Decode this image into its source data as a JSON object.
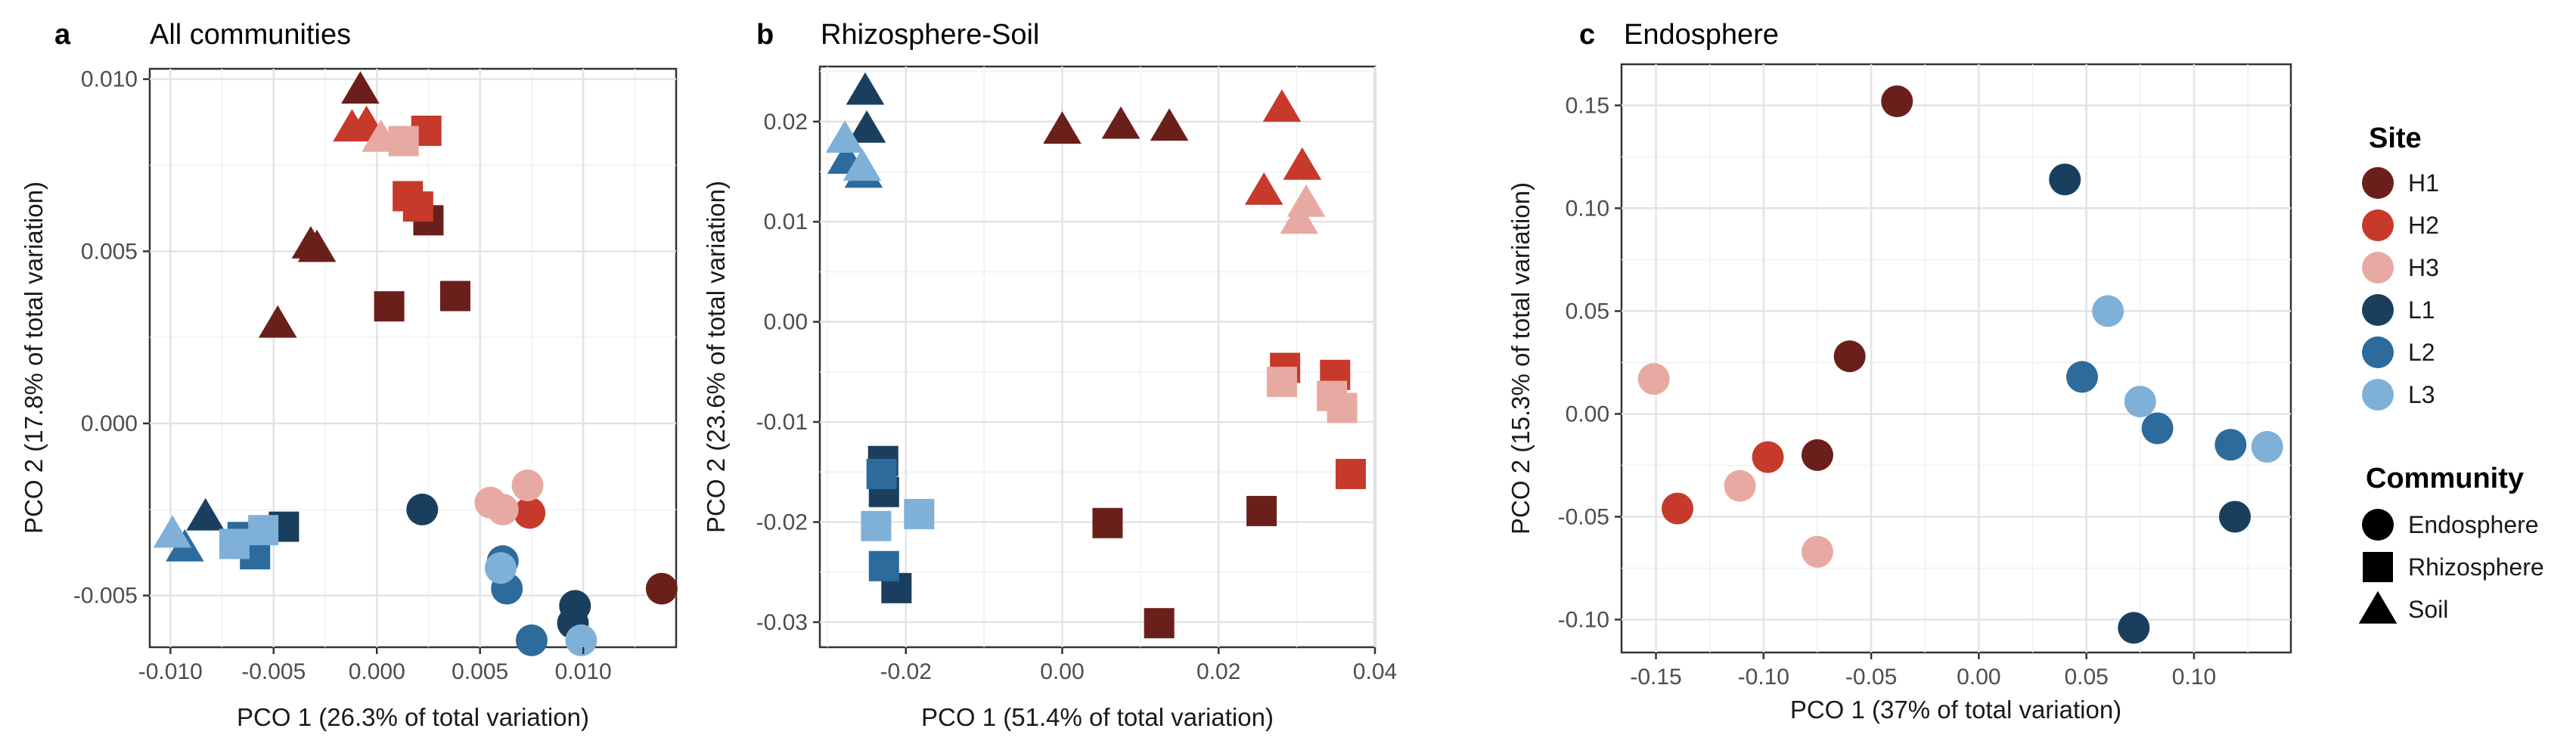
{
  "legend": {
    "site_title": "Site",
    "sites": [
      {
        "label": "H1",
        "color": "#6b1f1a"
      },
      {
        "label": "H2",
        "color": "#c6392b"
      },
      {
        "label": "H3",
        "color": "#e7aaa2"
      },
      {
        "label": "L1",
        "color": "#1a3f5e"
      },
      {
        "label": "L2",
        "color": "#2c6b9c"
      },
      {
        "label": "L3",
        "color": "#7fb0d8"
      }
    ],
    "community_title": "Community",
    "communities": [
      {
        "label": "Endosphere",
        "shape": "circle"
      },
      {
        "label": "Rhizosphere",
        "shape": "square"
      },
      {
        "label": "Soil",
        "shape": "triangle"
      }
    ]
  },
  "chart_data": [
    {
      "type": "scatter",
      "panel": "a",
      "title": "All communities",
      "xlabel": "PCO 1 (26.3% of total variation)",
      "ylabel": "PCO 2 (17.8% of total variation)",
      "xlim": [
        -0.011,
        0.0145
      ],
      "ylim": [
        -0.0065,
        0.0103
      ],
      "xticks": [
        -0.01,
        -0.005,
        0.0,
        0.005,
        0.01
      ],
      "xtick_labels": [
        "-0.010",
        "-0.005",
        "0.000",
        "0.005",
        "0.010"
      ],
      "yticks": [
        -0.005,
        0.0,
        0.005,
        0.01
      ],
      "ytick_labels": [
        "-0.005",
        "0.000",
        "0.005",
        "0.010"
      ],
      "grid": true,
      "points": [
        {
          "x": -0.0008,
          "y": 0.0097,
          "site": "H1",
          "community": "Soil"
        },
        {
          "x": -0.0032,
          "y": 0.0052,
          "site": "H1",
          "community": "Soil"
        },
        {
          "x": -0.0029,
          "y": 0.0051,
          "site": "H1",
          "community": "Soil"
        },
        {
          "x": -0.0048,
          "y": 0.0029,
          "site": "H1",
          "community": "Soil"
        },
        {
          "x": 0.0025,
          "y": 0.0059,
          "site": "H1",
          "community": "Rhizosphere"
        },
        {
          "x": 0.0006,
          "y": 0.0034,
          "site": "H1",
          "community": "Rhizosphere"
        },
        {
          "x": 0.0038,
          "y": 0.0037,
          "site": "H1",
          "community": "Rhizosphere"
        },
        {
          "x": 0.0138,
          "y": -0.0048,
          "site": "H1",
          "community": "Endosphere"
        },
        {
          "x": -0.0005,
          "y": 0.0087,
          "site": "H2",
          "community": "Soil"
        },
        {
          "x": -0.0012,
          "y": 0.0086,
          "site": "H2",
          "community": "Soil"
        },
        {
          "x": 0.0024,
          "y": 0.0085,
          "site": "H2",
          "community": "Rhizosphere"
        },
        {
          "x": 0.0015,
          "y": 0.0066,
          "site": "H2",
          "community": "Rhizosphere"
        },
        {
          "x": 0.002,
          "y": 0.0063,
          "site": "H2",
          "community": "Rhizosphere"
        },
        {
          "x": 0.0074,
          "y": -0.0026,
          "site": "H2",
          "community": "Endosphere"
        },
        {
          "x": 0.0002,
          "y": 0.0083,
          "site": "H3",
          "community": "Soil"
        },
        {
          "x": 0.0013,
          "y": 0.0082,
          "site": "H3",
          "community": "Rhizosphere"
        },
        {
          "x": 0.0055,
          "y": -0.0023,
          "site": "H3",
          "community": "Endosphere"
        },
        {
          "x": 0.0061,
          "y": -0.0025,
          "site": "H3",
          "community": "Endosphere"
        },
        {
          "x": 0.0073,
          "y": -0.0018,
          "site": "H3",
          "community": "Endosphere"
        },
        {
          "x": -0.0083,
          "y": -0.0027,
          "site": "L1",
          "community": "Soil"
        },
        {
          "x": -0.0045,
          "y": -0.003,
          "site": "L1",
          "community": "Rhizosphere"
        },
        {
          "x": 0.0022,
          "y": -0.0025,
          "site": "L1",
          "community": "Endosphere"
        },
        {
          "x": 0.0096,
          "y": -0.0053,
          "site": "L1",
          "community": "Endosphere"
        },
        {
          "x": 0.0095,
          "y": -0.0058,
          "site": "L1",
          "community": "Endosphere"
        },
        {
          "x": -0.0093,
          "y": -0.0036,
          "site": "L2",
          "community": "Soil"
        },
        {
          "x": -0.0065,
          "y": -0.0033,
          "site": "L2",
          "community": "Rhizosphere"
        },
        {
          "x": -0.0059,
          "y": -0.0038,
          "site": "L2",
          "community": "Rhizosphere"
        },
        {
          "x": 0.0061,
          "y": -0.004,
          "site": "L2",
          "community": "Endosphere"
        },
        {
          "x": 0.0063,
          "y": -0.0048,
          "site": "L2",
          "community": "Endosphere"
        },
        {
          "x": 0.0075,
          "y": -0.0063,
          "site": "L2",
          "community": "Endosphere"
        },
        {
          "x": -0.0099,
          "y": -0.0032,
          "site": "L3",
          "community": "Soil"
        },
        {
          "x": -0.0069,
          "y": -0.0035,
          "site": "L3",
          "community": "Rhizosphere"
        },
        {
          "x": -0.0055,
          "y": -0.0031,
          "site": "L3",
          "community": "Rhizosphere"
        },
        {
          "x": 0.006,
          "y": -0.0042,
          "site": "L3",
          "community": "Endosphere"
        },
        {
          "x": 0.0099,
          "y": -0.0063,
          "site": "L3",
          "community": "Endosphere"
        }
      ]
    },
    {
      "type": "scatter",
      "panel": "b",
      "title": "Rhizosphere-Soil",
      "xlabel": "PCO 1 (51.4% of total variation)",
      "ylabel": "PCO 2 (23.6% of total variation)",
      "xlim": [
        -0.031,
        0.04
      ],
      "ylim": [
        -0.0325,
        0.0255
      ],
      "xticks": [
        -0.02,
        0.0,
        0.02,
        0.04
      ],
      "xtick_labels": [
        "-0.02",
        "0.00",
        "0.02",
        "0.04"
      ],
      "yticks": [
        -0.03,
        -0.02,
        -0.01,
        0.0,
        0.01,
        0.02
      ],
      "ytick_labels": [
        "-0.03",
        "-0.02",
        "-0.01",
        "0.00",
        "0.01",
        "0.02"
      ],
      "grid": true,
      "points": [
        {
          "x": 0.0,
          "y": 0.0192,
          "site": "H1",
          "community": "Soil"
        },
        {
          "x": 0.0075,
          "y": 0.0197,
          "site": "H1",
          "community": "Soil"
        },
        {
          "x": 0.0137,
          "y": 0.0195,
          "site": "H1",
          "community": "Soil"
        },
        {
          "x": 0.0058,
          "y": -0.0201,
          "site": "H1",
          "community": "Rhizosphere"
        },
        {
          "x": 0.0255,
          "y": -0.0189,
          "site": "H1",
          "community": "Rhizosphere"
        },
        {
          "x": 0.0124,
          "y": -0.0301,
          "site": "H1",
          "community": "Rhizosphere"
        },
        {
          "x": 0.0281,
          "y": 0.0214,
          "site": "H2",
          "community": "Soil"
        },
        {
          "x": 0.0307,
          "y": 0.0156,
          "site": "H2",
          "community": "Soil"
        },
        {
          "x": 0.0258,
          "y": 0.0131,
          "site": "H2",
          "community": "Soil"
        },
        {
          "x": 0.0285,
          "y": -0.0046,
          "site": "H2",
          "community": "Rhizosphere"
        },
        {
          "x": 0.0349,
          "y": -0.0053,
          "site": "H2",
          "community": "Rhizosphere"
        },
        {
          "x": 0.0369,
          "y": -0.0152,
          "site": "H2",
          "community": "Rhizosphere"
        },
        {
          "x": 0.0312,
          "y": 0.0119,
          "site": "H3",
          "community": "Soil"
        },
        {
          "x": 0.0303,
          "y": 0.0102,
          "site": "H3",
          "community": "Soil"
        },
        {
          "x": 0.0281,
          "y": -0.006,
          "site": "H3",
          "community": "Rhizosphere"
        },
        {
          "x": 0.0345,
          "y": -0.0074,
          "site": "H3",
          "community": "Rhizosphere"
        },
        {
          "x": 0.0358,
          "y": -0.0086,
          "site": "H3",
          "community": "Rhizosphere"
        },
        {
          "x": -0.0252,
          "y": 0.0231,
          "site": "L1",
          "community": "Soil"
        },
        {
          "x": -0.025,
          "y": 0.0193,
          "site": "L1",
          "community": "Soil"
        },
        {
          "x": -0.0229,
          "y": -0.0139,
          "site": "L1",
          "community": "Rhizosphere"
        },
        {
          "x": -0.0228,
          "y": -0.017,
          "site": "L1",
          "community": "Rhizosphere"
        },
        {
          "x": -0.0212,
          "y": -0.0266,
          "site": "L1",
          "community": "Rhizosphere"
        },
        {
          "x": -0.0276,
          "y": 0.0162,
          "site": "L2",
          "community": "Soil"
        },
        {
          "x": -0.0254,
          "y": 0.0148,
          "site": "L2",
          "community": "Soil"
        },
        {
          "x": -0.0231,
          "y": -0.0152,
          "site": "L2",
          "community": "Rhizosphere"
        },
        {
          "x": -0.0228,
          "y": -0.0244,
          "site": "L2",
          "community": "Rhizosphere"
        },
        {
          "x": -0.0278,
          "y": 0.0183,
          "site": "L3",
          "community": "Soil"
        },
        {
          "x": -0.0256,
          "y": 0.0155,
          "site": "L3",
          "community": "Soil"
        },
        {
          "x": -0.0238,
          "y": -0.0204,
          "site": "L3",
          "community": "Rhizosphere"
        },
        {
          "x": -0.0183,
          "y": -0.0192,
          "site": "L3",
          "community": "Rhizosphere"
        }
      ]
    },
    {
      "type": "scatter",
      "panel": "c",
      "title": "Endosphere",
      "xlabel": "PCO 1 (37% of total variation)",
      "ylabel": "PCO 2 (15.3% of total variation)",
      "xlim": [
        -0.166,
        0.145
      ],
      "ylim": [
        -0.116,
        0.17
      ],
      "xticks": [
        -0.15,
        -0.1,
        -0.05,
        0.0,
        0.05,
        0.1
      ],
      "xtick_labels": [
        "-0.15",
        "-0.10",
        "-0.05",
        "0.00",
        "0.05",
        "0.10"
      ],
      "yticks": [
        -0.1,
        -0.05,
        0.0,
        0.05,
        0.1,
        0.15
      ],
      "ytick_labels": [
        "-0.10",
        "-0.05",
        "0.00",
        "0.05",
        "0.10",
        "0.15"
      ],
      "grid": true,
      "points": [
        {
          "x": -0.038,
          "y": 0.152,
          "site": "H1",
          "community": "Endosphere"
        },
        {
          "x": -0.06,
          "y": 0.028,
          "site": "H1",
          "community": "Endosphere"
        },
        {
          "x": -0.075,
          "y": -0.02,
          "site": "H1",
          "community": "Endosphere"
        },
        {
          "x": -0.098,
          "y": -0.021,
          "site": "H2",
          "community": "Endosphere"
        },
        {
          "x": -0.14,
          "y": -0.046,
          "site": "H2",
          "community": "Endosphere"
        },
        {
          "x": -0.151,
          "y": 0.017,
          "site": "H3",
          "community": "Endosphere"
        },
        {
          "x": -0.111,
          "y": -0.035,
          "site": "H3",
          "community": "Endosphere"
        },
        {
          "x": -0.075,
          "y": -0.067,
          "site": "H3",
          "community": "Endosphere"
        },
        {
          "x": 0.04,
          "y": 0.114,
          "site": "L1",
          "community": "Endosphere"
        },
        {
          "x": 0.119,
          "y": -0.05,
          "site": "L1",
          "community": "Endosphere"
        },
        {
          "x": 0.072,
          "y": -0.104,
          "site": "L1",
          "community": "Endosphere"
        },
        {
          "x": 0.048,
          "y": 0.018,
          "site": "L2",
          "community": "Endosphere"
        },
        {
          "x": 0.083,
          "y": -0.007,
          "site": "L2",
          "community": "Endosphere"
        },
        {
          "x": 0.117,
          "y": -0.015,
          "site": "L2",
          "community": "Endosphere"
        },
        {
          "x": 0.06,
          "y": 0.05,
          "site": "L3",
          "community": "Endosphere"
        },
        {
          "x": 0.075,
          "y": 0.006,
          "site": "L3",
          "community": "Endosphere"
        },
        {
          "x": 0.134,
          "y": -0.016,
          "site": "L3",
          "community": "Endosphere"
        }
      ]
    }
  ]
}
